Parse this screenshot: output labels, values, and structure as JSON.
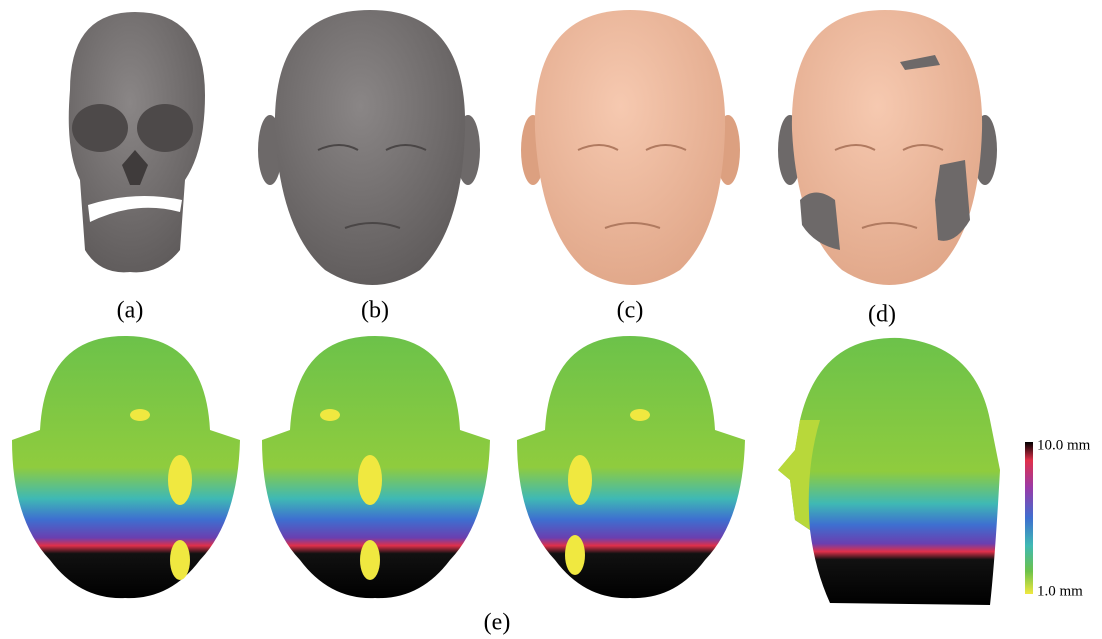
{
  "panels": [
    {
      "label": "(a)"
    },
    {
      "label": "(b)"
    },
    {
      "label": "(c)"
    },
    {
      "label": "(d)"
    }
  ],
  "bottom_label": "(e)",
  "colorbar": {
    "max_label": "10.0 mm",
    "min_label": "1.0 mm"
  }
}
